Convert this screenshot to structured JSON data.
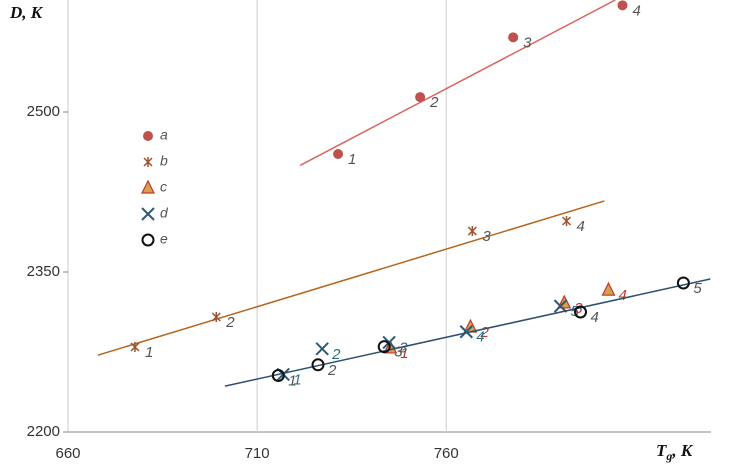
{
  "chart_data": {
    "type": "scatter",
    "ylabel": "D, K",
    "xlabel": {
      "main": "T",
      "sub": "g",
      "unit": ", K"
    },
    "xlim": [
      660,
      830
    ],
    "ylim": [
      2200,
      2605
    ],
    "xticks": [
      660,
      710,
      760
    ],
    "yticks": [
      2200,
      2350,
      2500
    ],
    "grid": true,
    "series": [
      {
        "name": "a",
        "color": "#c0504d",
        "marker": "circle",
        "label_color": "#555",
        "x": [
          731.4,
          753.1,
          777.7,
          806.6
        ],
        "y": [
          2460.6,
          2514,
          2570,
          2600
        ],
        "labels": [
          "1",
          "2",
          "3",
          "4"
        ],
        "trend": {
          "color": "#d9645e",
          "x": [
            721.4,
            804.7
          ],
          "y": [
            2450,
            2605
          ]
        }
      },
      {
        "name": "b",
        "color": "#a0522d",
        "marker": "asterisk",
        "label_color": "#555",
        "x": [
          677.7,
          699.2,
          766.9,
          791.8
        ],
        "y": [
          2279.7,
          2307.8,
          2388.4,
          2397.8
        ],
        "labels": [
          "1",
          "2",
          "3",
          "4"
        ],
        "trend": {
          "color": "#b5651d",
          "x": [
            667.9,
            801.8
          ],
          "y": [
            2272,
            2416.6
          ]
        }
      },
      {
        "name": "c",
        "color": "#d4a24c",
        "marker": "triangle",
        "label_color": "#c0392b",
        "x": [
          745.2,
          766.4,
          791.2,
          802.9
        ],
        "y": [
          2278.8,
          2298.4,
          2321,
          2333
        ],
        "labels": [
          "1",
          "2",
          "3",
          "4"
        ]
      },
      {
        "name": "d",
        "color": "#2e5a74",
        "marker": "cross",
        "label_color": "#2e6f80",
        "x": [
          716.9,
          727.2,
          744.9,
          765.3,
          790.2
        ],
        "y": [
          2254,
          2278,
          2284,
          2294,
          2318
        ],
        "labels": [
          "1",
          "2",
          "3",
          "4",
          "5"
        ]
      },
      {
        "name": "e",
        "color": "#111111",
        "marker": "open-circle",
        "label_color": "#555",
        "x": [
          715.6,
          726.1,
          743.6,
          795.5,
          822.7
        ],
        "y": [
          2253,
          2263,
          2280,
          2312.5,
          2339.7
        ],
        "labels": [
          "1",
          "2",
          "3",
          "4",
          "5"
        ],
        "trend": {
          "color": "#2f4f6f",
          "x": [
            701.5,
            829.8
          ],
          "y": [
            2243,
            2343.4
          ]
        }
      }
    ]
  }
}
